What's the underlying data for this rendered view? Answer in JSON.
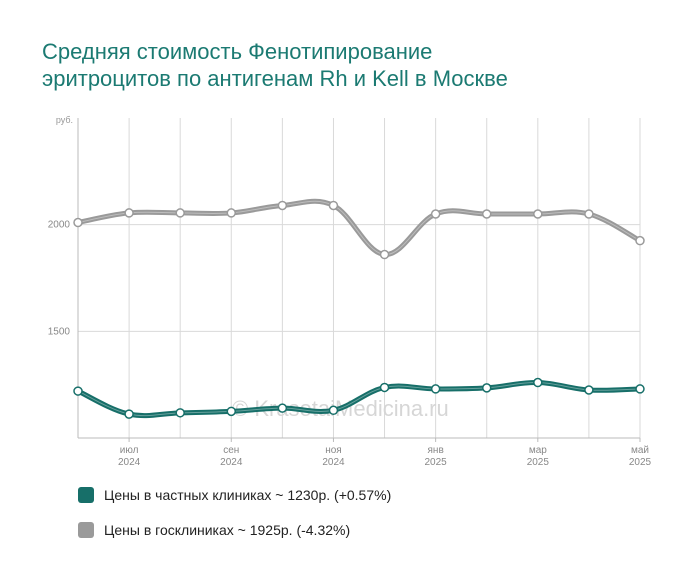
{
  "title_line1": "Средняя стоимость Фенотипирование",
  "title_line2": "эритроцитов по антигенам Rh и Kell в Москве",
  "watermark": "© KrasotaiMedicina.ru",
  "colors": {
    "private": "#176f69",
    "public": "#9a9a9a",
    "grid": "#d9d9d9",
    "title": "#1b7a72"
  },
  "legend": [
    {
      "label": "Цены в частных клиниках ~ 1230р. (+0.57%)",
      "color": "#176f69"
    },
    {
      "label": "Цены в госклиниках ~ 1925р. (-4.32%)",
      "color": "#9a9a9a"
    }
  ],
  "chart_data": {
    "type": "line",
    "ylabel": "руб.",
    "ylim": [
      1000,
      2500
    ],
    "yticks": [
      2000,
      1500
    ],
    "x": [
      "2024-06",
      "2024-07",
      "2024-08",
      "2024-09",
      "2024-10",
      "2024-11",
      "2024-12",
      "2025-01",
      "2025-02",
      "2025-03",
      "2025-04",
      "2025-05"
    ],
    "x_tick_labels": [
      {
        "index": 1,
        "month": "июл",
        "year": "2024"
      },
      {
        "index": 3,
        "month": "сен",
        "year": "2024"
      },
      {
        "index": 5,
        "month": "ноя",
        "year": "2024"
      },
      {
        "index": 7,
        "month": "янв",
        "year": "2025"
      },
      {
        "index": 9,
        "month": "мар",
        "year": "2025"
      },
      {
        "index": 11,
        "month": "май",
        "year": "2025"
      }
    ],
    "series": [
      {
        "name": "Цены в госклиниках",
        "color": "#9a9a9a",
        "values": [
          2010,
          2055,
          2055,
          2055,
          2090,
          2090,
          1860,
          2050,
          2050,
          2050,
          2050,
          1925
        ]
      },
      {
        "name": "Цены в частных клиниках",
        "color": "#176f69",
        "values": [
          1220,
          1112,
          1118,
          1125,
          1140,
          1130,
          1237,
          1230,
          1235,
          1260,
          1225,
          1230
        ]
      }
    ]
  }
}
